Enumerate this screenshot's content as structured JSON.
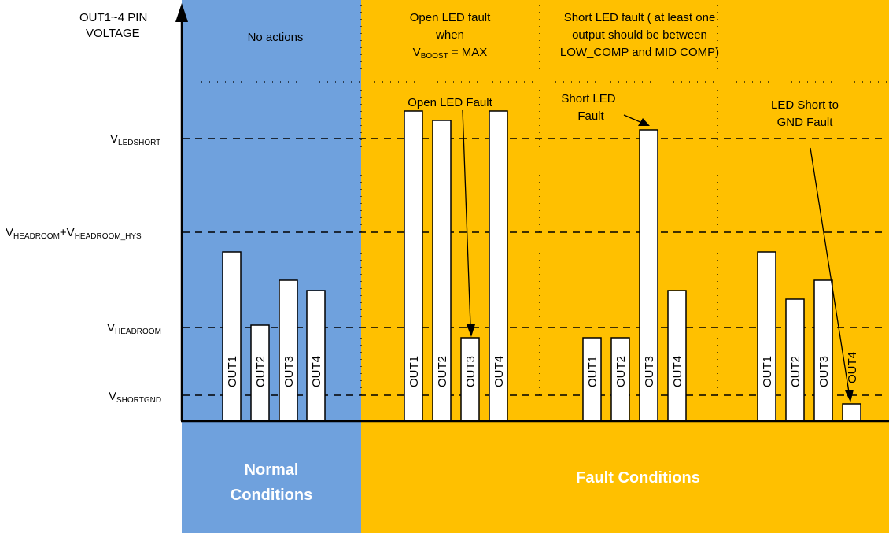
{
  "axis": {
    "y_label_line1": "OUT1~4 PIN",
    "y_label_line2": "VOLTAGE"
  },
  "levels": {
    "ledshort": {
      "base": "V",
      "sub": "LEDSHORT"
    },
    "headroom_hys": {
      "base1": "V",
      "sub1": "HEADROOM",
      "plus": "+V",
      "sub2": "HEADROOM_HYS"
    },
    "headroom": {
      "base": "V",
      "sub": "HEADROOM"
    },
    "shortgnd": {
      "base": "V",
      "sub": "SHORTGND"
    }
  },
  "regions": {
    "normal_header": "No actions",
    "open_header_line1": "Open LED fault",
    "open_header_line2": "when",
    "open_header_vb": "V",
    "open_header_vb_sub": "BOOST",
    "open_header_eq": " = MAX",
    "short_header_line1": "Short LED fault ( at least one",
    "short_header_line2": "output should be between",
    "short_header_line3": "LOW_COMP and MID COMP)"
  },
  "annotations": {
    "open_led_fault": "Open LED Fault",
    "short_led_fault_line1": "Short LED",
    "short_led_fault_line2": "Fault",
    "gnd_fault_line1": "LED Short to",
    "gnd_fault_line2": "GND Fault"
  },
  "footer": {
    "normal_line1": "Normal",
    "normal_line2": "Conditions",
    "fault": "Fault Conditions"
  },
  "bar_labels": [
    "OUT1",
    "OUT2",
    "OUT3",
    "OUT4",
    "OUT1",
    "OUT2",
    "OUT3",
    "OUT4",
    "OUT1",
    "OUT2",
    "OUT3",
    "OUT4",
    "OUT1",
    "OUT2",
    "OUT3",
    "OUT4"
  ],
  "colors": {
    "normal": "#6fa1dd",
    "fault": "#ffc000"
  }
}
